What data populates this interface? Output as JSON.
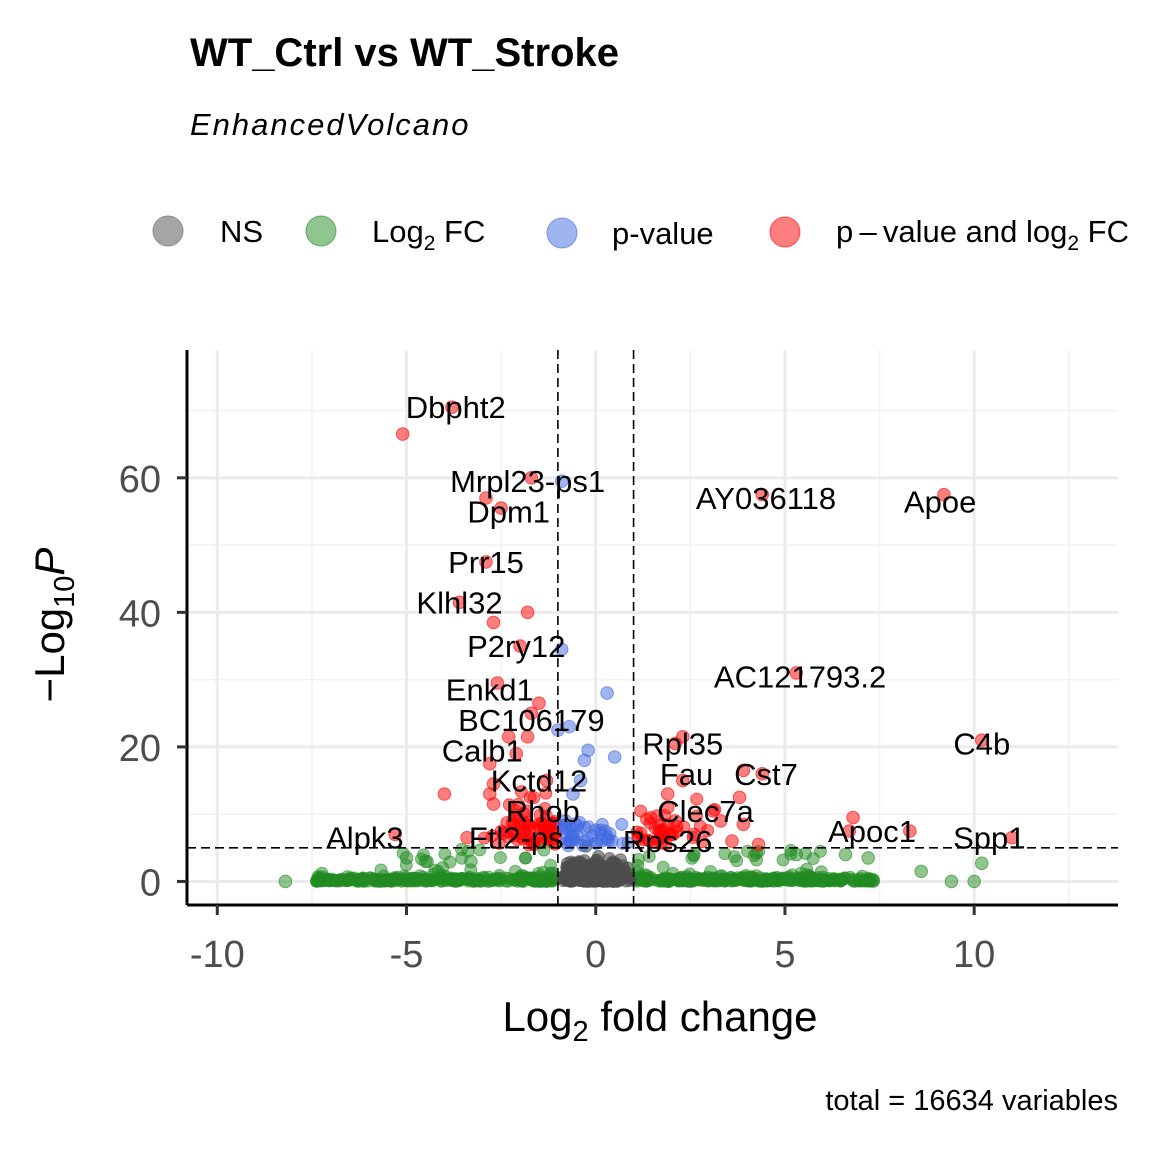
{
  "chart_data": {
    "type": "scatter",
    "title": "WT_Ctrl vs WT_Stroke",
    "subtitle": "EnhancedVolcano",
    "xlabel_main": "Log",
    "xlabel_sub": "2",
    "xlabel_rest": " fold change",
    "ylabel_minus": "−",
    "ylabel_main": "Log",
    "ylabel_sub": "10",
    "ylabel_var": "P",
    "caption": "total = 16634 variables",
    "xlim": [
      -10.8,
      13.8
    ],
    "ylim": [
      -3.5,
      79
    ],
    "x_breaks": [
      -10,
      -5,
      0,
      5,
      10
    ],
    "x_tick_labels": [
      "-10",
      "-5",
      "0",
      "5",
      "10"
    ],
    "y_breaks": [
      0,
      20,
      40,
      60
    ],
    "y_tick_labels": [
      "0",
      "20",
      "40",
      "60"
    ],
    "fc_cutoff": 1,
    "p_cutoff_log10": 5,
    "grid": true,
    "legend": {
      "position": "top",
      "items": [
        {
          "label": "NS",
          "color": "#7f7f7f"
        },
        {
          "label": "Log",
          "sub": "2",
          "rest": " FC",
          "color": "#228b22"
        },
        {
          "label": "p-value",
          "color": "#4169e1"
        },
        {
          "label": "p – value and log",
          "sub": "2",
          "rest": " FC",
          "color": "#ff0000"
        }
      ]
    },
    "series_colors": {
      "NS": "#4d4d4d",
      "Log2 FC": "#228b22",
      "p-value": "#4169e1",
      "p-value and log2 FC": "#ff0000"
    },
    "highlighted_points": [
      {
        "x": -3.8,
        "y": 70.5,
        "group": "p-value and log2 FC"
      },
      {
        "x": -5.1,
        "y": 66.5,
        "group": "p-value and log2 FC"
      },
      {
        "x": -1.7,
        "y": 60.0,
        "group": "p-value and log2 FC"
      },
      {
        "x": -0.9,
        "y": 59.5,
        "group": "p-value"
      },
      {
        "x": -2.9,
        "y": 57.0,
        "group": "p-value and log2 FC"
      },
      {
        "x": -2.5,
        "y": 55.5,
        "group": "p-value and log2 FC"
      },
      {
        "x": 4.4,
        "y": 57.5,
        "group": "p-value and log2 FC"
      },
      {
        "x": 9.2,
        "y": 57.5,
        "group": "p-value and log2 FC"
      },
      {
        "x": -2.9,
        "y": 47.5,
        "group": "p-value and log2 FC"
      },
      {
        "x": -3.6,
        "y": 41.5,
        "group": "p-value and log2 FC"
      },
      {
        "x": -1.8,
        "y": 40.0,
        "group": "p-value and log2 FC"
      },
      {
        "x": -2.7,
        "y": 38.5,
        "group": "p-value and log2 FC"
      },
      {
        "x": -2.0,
        "y": 35.0,
        "group": "p-value and log2 FC"
      },
      {
        "x": -0.9,
        "y": 34.5,
        "group": "p-value"
      },
      {
        "x": 5.3,
        "y": 31.0,
        "group": "p-value and log2 FC"
      },
      {
        "x": -2.6,
        "y": 29.5,
        "group": "p-value and log2 FC"
      },
      {
        "x": 0.3,
        "y": 28.0,
        "group": "p-value"
      },
      {
        "x": -1.5,
        "y": 26.5,
        "group": "p-value and log2 FC"
      },
      {
        "x": -1.7,
        "y": 25.0,
        "group": "p-value and log2 FC"
      },
      {
        "x": -0.7,
        "y": 23.0,
        "group": "p-value"
      },
      {
        "x": -1.0,
        "y": 22.5,
        "group": "p-value"
      },
      {
        "x": -1.8,
        "y": 21.5,
        "group": "p-value and log2 FC"
      },
      {
        "x": -2.3,
        "y": 21.5,
        "group": "p-value and log2 FC"
      },
      {
        "x": 2.3,
        "y": 21.5,
        "group": "p-value and log2 FC"
      },
      {
        "x": 2.1,
        "y": 20.5,
        "group": "p-value and log2 FC"
      },
      {
        "x": 10.2,
        "y": 21.0,
        "group": "p-value and log2 FC"
      },
      {
        "x": -0.2,
        "y": 19.5,
        "group": "p-value"
      },
      {
        "x": 0.5,
        "y": 18.5,
        "group": "p-value"
      },
      {
        "x": -2.1,
        "y": 19.0,
        "group": "p-value and log2 FC"
      },
      {
        "x": -2.8,
        "y": 17.5,
        "group": "p-value and log2 FC"
      },
      {
        "x": -0.3,
        "y": 18.0,
        "group": "p-value"
      },
      {
        "x": 3.9,
        "y": 16.5,
        "group": "p-value and log2 FC"
      },
      {
        "x": 4.4,
        "y": 16.0,
        "group": "p-value and log2 FC"
      },
      {
        "x": 2.3,
        "y": 15.0,
        "group": "p-value and log2 FC"
      },
      {
        "x": -1.3,
        "y": 15.0,
        "group": "p-value and log2 FC"
      },
      {
        "x": -2.7,
        "y": 14.5,
        "group": "p-value and log2 FC"
      },
      {
        "x": -0.4,
        "y": 15.0,
        "group": "p-value"
      },
      {
        "x": -4.0,
        "y": 13.0,
        "group": "p-value and log2 FC"
      },
      {
        "x": -2.8,
        "y": 13.0,
        "group": "p-value and log2 FC"
      },
      {
        "x": 1.9,
        "y": 13.0,
        "group": "p-value and log2 FC"
      },
      {
        "x": 3.8,
        "y": 12.5,
        "group": "p-value and log2 FC"
      },
      {
        "x": -2.7,
        "y": 11.5,
        "group": "p-value and log2 FC"
      },
      {
        "x": -0.6,
        "y": 13.0,
        "group": "p-value"
      },
      {
        "x": 1.9,
        "y": 11.0,
        "group": "p-value and log2 FC"
      },
      {
        "x": 3.1,
        "y": 10.5,
        "group": "p-value and log2 FC"
      },
      {
        "x": 6.8,
        "y": 9.5,
        "group": "p-value and log2 FC"
      },
      {
        "x": 2.1,
        "y": 9.0,
        "group": "p-value and log2 FC"
      },
      {
        "x": 3.3,
        "y": 9.0,
        "group": "p-value and log2 FC"
      },
      {
        "x": 3.9,
        "y": 8.5,
        "group": "p-value and log2 FC"
      },
      {
        "x": 6.7,
        "y": 7.5,
        "group": "p-value and log2 FC"
      },
      {
        "x": 8.3,
        "y": 7.5,
        "group": "p-value and log2 FC"
      },
      {
        "x": 11.0,
        "y": 6.5,
        "group": "p-value and log2 FC"
      },
      {
        "x": -5.3,
        "y": 7.0,
        "group": "p-value and log2 FC"
      },
      {
        "x": -3.4,
        "y": 6.5,
        "group": "p-value and log2 FC"
      },
      {
        "x": 2.6,
        "y": 7.0,
        "group": "p-value and log2 FC"
      },
      {
        "x": 3.6,
        "y": 6.0,
        "group": "p-value and log2 FC"
      },
      {
        "x": 4.3,
        "y": 5.5,
        "group": "p-value and log2 FC"
      },
      {
        "x": -0.3,
        "y": 8.0,
        "group": "p-value"
      },
      {
        "x": -0.8,
        "y": 9.0,
        "group": "p-value"
      },
      {
        "x": -5.0,
        "y": 3.5,
        "group": "Log2 FC"
      },
      {
        "x": -4.5,
        "y": 3.0,
        "group": "Log2 FC"
      },
      {
        "x": -3.3,
        "y": 3.0,
        "group": "Log2 FC"
      },
      {
        "x": 5.3,
        "y": 4.0,
        "group": "Log2 FC"
      },
      {
        "x": 6.6,
        "y": 4.0,
        "group": "Log2 FC"
      },
      {
        "x": 7.2,
        "y": 3.5,
        "group": "Log2 FC"
      },
      {
        "x": 10.2,
        "y": 2.7,
        "group": "Log2 FC"
      },
      {
        "x": 8.6,
        "y": 1.5,
        "group": "Log2 FC"
      },
      {
        "x": -8.2,
        "y": 0.0,
        "group": "Log2 FC"
      },
      {
        "x": 9.4,
        "y": 0.0,
        "group": "Log2 FC"
      },
      {
        "x": 10.0,
        "y": 0.0,
        "group": "Log2 FC"
      }
    ],
    "labels": [
      {
        "text": "Dbpht2",
        "x": -3.7,
        "y": 70.5
      },
      {
        "text": "Mrpl23-ps1",
        "x": -1.8,
        "y": 59.5
      },
      {
        "text": "Dpm1",
        "x": -2.3,
        "y": 55.0
      },
      {
        "text": "AY036118",
        "x": 4.5,
        "y": 57.0
      },
      {
        "text": "Apoe",
        "x": 9.1,
        "y": 56.5
      },
      {
        "text": "Prr15",
        "x": -2.9,
        "y": 47.5
      },
      {
        "text": "Klhl32",
        "x": -3.6,
        "y": 41.5
      },
      {
        "text": "P2ry12",
        "x": -2.1,
        "y": 35.0
      },
      {
        "text": "AC121793.2",
        "x": 5.4,
        "y": 30.5
      },
      {
        "text": "Enkd1",
        "x": -2.8,
        "y": 28.5
      },
      {
        "text": "BC106179",
        "x": -1.7,
        "y": 24.0
      },
      {
        "text": "Rpl35",
        "x": 2.3,
        "y": 20.5
      },
      {
        "text": "C4b",
        "x": 10.2,
        "y": 20.5
      },
      {
        "text": "Calb1",
        "x": -3.0,
        "y": 19.5
      },
      {
        "text": "Fau",
        "x": 2.4,
        "y": 16.0
      },
      {
        "text": "Cst7",
        "x": 4.5,
        "y": 16.0
      },
      {
        "text": "Kctd12",
        "x": -1.5,
        "y": 15.0
      },
      {
        "text": "Rhob",
        "x": -1.4,
        "y": 10.5
      },
      {
        "text": "Clec7a",
        "x": 2.9,
        "y": 10.5
      },
      {
        "text": "Apoc1",
        "x": 7.3,
        "y": 7.5
      },
      {
        "text": "Alpk3",
        "x": -6.1,
        "y": 6.5
      },
      {
        "text": "Ftl2-ps",
        "x": -2.1,
        "y": 6.5
      },
      {
        "text": "Rps26",
        "x": 1.9,
        "y": 6.0
      },
      {
        "text": "Spp1",
        "x": 10.4,
        "y": 6.5
      }
    ]
  }
}
